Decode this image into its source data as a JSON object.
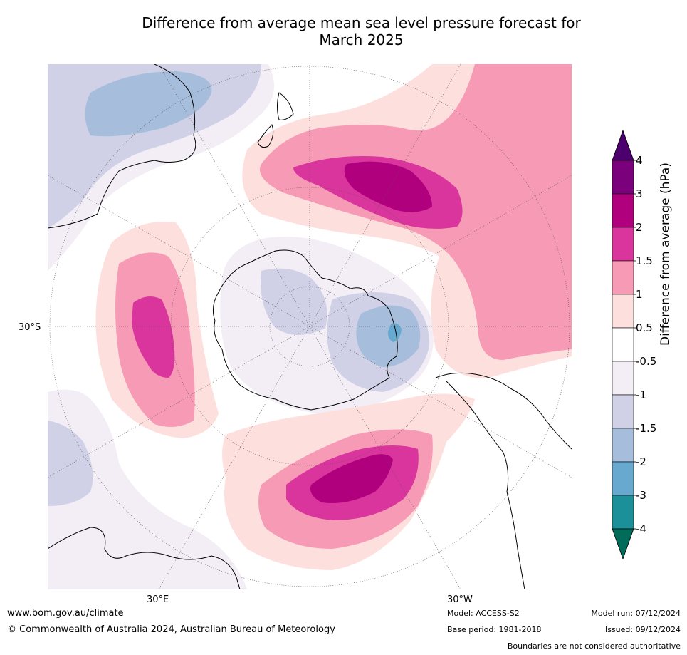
{
  "title_line1": "Difference from average mean sea level pressure forecast for",
  "title_line2": "March 2025",
  "axis": {
    "lat_label": "30°S",
    "lon_label_left": "30°E",
    "lon_label_right": "30°W"
  },
  "colorbar": {
    "title": "Difference from average (hPa)",
    "ticks": [
      "4",
      "3",
      "2",
      "1.5",
      "1",
      "0.5",
      "-0.5",
      "-1",
      "-1.5",
      "-2",
      "-3",
      "-4"
    ],
    "colors_top_to_bottom": [
      "#4b006e",
      "#7b007b",
      "#b0007e",
      "#d9359c",
      "#f79ab5",
      "#fde0dd",
      "#ffffff",
      "#f3edf6",
      "#d0d1e6",
      "#a6bddb",
      "#67a9cf",
      "#1c9099",
      "#016c59"
    ]
  },
  "footer": {
    "website": "www.bom.gov.au/climate",
    "copyright": "© Commonwealth of Australia 2024, Australian Bureau of Meteorology",
    "model": "Model: ACCESS-S2",
    "base_period": "Base period: 1981-2018",
    "model_run": "Model run: 07/12/2024",
    "issued": "Issued: 09/12/2024",
    "disclaimer": "Boundaries are not considered authoritative"
  }
}
